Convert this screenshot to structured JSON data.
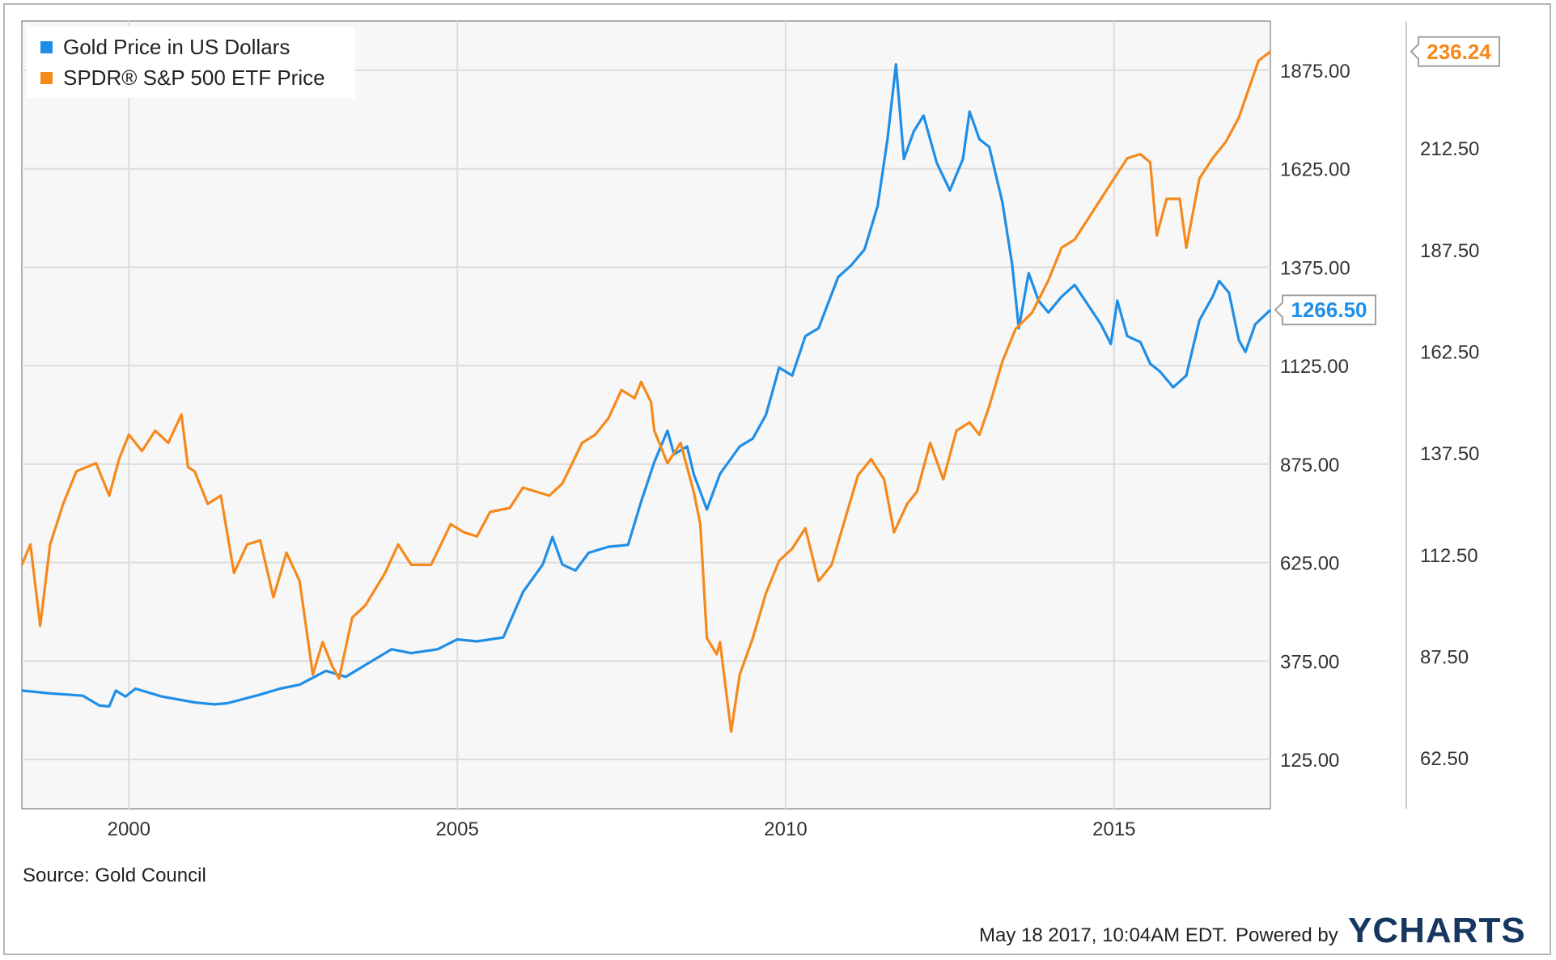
{
  "chart_data": {
    "type": "line",
    "x_ticks": [
      "2000",
      "2005",
      "2010",
      "2015"
    ],
    "y_left": {
      "ticks": [
        "125.00",
        "375.00",
        "625.00",
        "875.00",
        "1125.00",
        "1375.00",
        "1625.00",
        "1875.00"
      ],
      "range": [
        0,
        2000
      ]
    },
    "y_right": {
      "ticks": [
        "62.50",
        "87.50",
        "112.50",
        "137.50",
        "162.50",
        "187.50",
        "212.50"
      ],
      "range": [
        50,
        243.75
      ]
    },
    "x_range": [
      1998.37,
      2017.38
    ],
    "grid": true,
    "legend_position": "top-left",
    "series": [
      {
        "name": "Gold Price in US Dollars",
        "color": "#1f8ee6",
        "axis": "left",
        "last_value": "1266.50",
        "points": [
          [
            1998.37,
            300
          ],
          [
            1998.8,
            293
          ],
          [
            1999.3,
            287
          ],
          [
            1999.55,
            262
          ],
          [
            1999.7,
            260
          ],
          [
            1999.8,
            300
          ],
          [
            1999.95,
            285
          ],
          [
            2000.1,
            305
          ],
          [
            2000.5,
            285
          ],
          [
            2001.0,
            270
          ],
          [
            2001.3,
            265
          ],
          [
            2001.5,
            268
          ],
          [
            2002.0,
            290
          ],
          [
            2002.3,
            305
          ],
          [
            2002.6,
            315
          ],
          [
            2003.0,
            350
          ],
          [
            2003.3,
            335
          ],
          [
            2003.7,
            375
          ],
          [
            2004.0,
            405
          ],
          [
            2004.3,
            395
          ],
          [
            2004.7,
            405
          ],
          [
            2005.0,
            430
          ],
          [
            2005.3,
            425
          ],
          [
            2005.7,
            435
          ],
          [
            2006.0,
            550
          ],
          [
            2006.3,
            620
          ],
          [
            2006.45,
            690
          ],
          [
            2006.6,
            620
          ],
          [
            2006.8,
            605
          ],
          [
            2007.0,
            650
          ],
          [
            2007.3,
            665
          ],
          [
            2007.6,
            670
          ],
          [
            2007.8,
            780
          ],
          [
            2008.0,
            880
          ],
          [
            2008.2,
            960
          ],
          [
            2008.3,
            900
          ],
          [
            2008.5,
            920
          ],
          [
            2008.6,
            850
          ],
          [
            2008.8,
            760
          ],
          [
            2009.0,
            850
          ],
          [
            2009.3,
            920
          ],
          [
            2009.5,
            940
          ],
          [
            2009.7,
            1000
          ],
          [
            2009.9,
            1120
          ],
          [
            2010.1,
            1100
          ],
          [
            2010.3,
            1200
          ],
          [
            2010.5,
            1220
          ],
          [
            2010.8,
            1350
          ],
          [
            2011.0,
            1380
          ],
          [
            2011.2,
            1420
          ],
          [
            2011.4,
            1530
          ],
          [
            2011.55,
            1700
          ],
          [
            2011.68,
            1890
          ],
          [
            2011.8,
            1650
          ],
          [
            2011.95,
            1720
          ],
          [
            2012.1,
            1760
          ],
          [
            2012.3,
            1640
          ],
          [
            2012.5,
            1570
          ],
          [
            2012.7,
            1650
          ],
          [
            2012.8,
            1770
          ],
          [
            2012.95,
            1700
          ],
          [
            2013.1,
            1680
          ],
          [
            2013.3,
            1540
          ],
          [
            2013.45,
            1380
          ],
          [
            2013.55,
            1220
          ],
          [
            2013.7,
            1360
          ],
          [
            2013.85,
            1290
          ],
          [
            2014.0,
            1260
          ],
          [
            2014.2,
            1300
          ],
          [
            2014.4,
            1330
          ],
          [
            2014.6,
            1280
          ],
          [
            2014.8,
            1230
          ],
          [
            2014.95,
            1180
          ],
          [
            2015.05,
            1290
          ],
          [
            2015.2,
            1200
          ],
          [
            2015.4,
            1185
          ],
          [
            2015.55,
            1130
          ],
          [
            2015.7,
            1110
          ],
          [
            2015.9,
            1070
          ],
          [
            2016.1,
            1100
          ],
          [
            2016.3,
            1240
          ],
          [
            2016.5,
            1300
          ],
          [
            2016.6,
            1340
          ],
          [
            2016.75,
            1310
          ],
          [
            2016.9,
            1190
          ],
          [
            2017.0,
            1160
          ],
          [
            2017.15,
            1230
          ],
          [
            2017.38,
            1266.5
          ]
        ]
      },
      {
        "name": "SPDR® S&P 500 ETF Price",
        "color": "#f5891c",
        "axis": "right",
        "last_value": "236.24",
        "points": [
          [
            1998.37,
            110
          ],
          [
            1998.5,
            115
          ],
          [
            1998.65,
            95
          ],
          [
            1998.8,
            115
          ],
          [
            1999.0,
            125
          ],
          [
            1999.2,
            133
          ],
          [
            1999.5,
            135
          ],
          [
            1999.7,
            127
          ],
          [
            1999.85,
            136
          ],
          [
            2000.0,
            142
          ],
          [
            2000.2,
            138
          ],
          [
            2000.4,
            143
          ],
          [
            2000.6,
            140
          ],
          [
            2000.8,
            147
          ],
          [
            2000.9,
            134
          ],
          [
            2001.0,
            133
          ],
          [
            2001.2,
            125
          ],
          [
            2001.4,
            127
          ],
          [
            2001.6,
            108
          ],
          [
            2001.8,
            115
          ],
          [
            2002.0,
            116
          ],
          [
            2002.2,
            102
          ],
          [
            2002.4,
            113
          ],
          [
            2002.6,
            106
          ],
          [
            2002.8,
            83
          ],
          [
            2002.95,
            91
          ],
          [
            2003.1,
            85
          ],
          [
            2003.2,
            82
          ],
          [
            2003.4,
            97
          ],
          [
            2003.6,
            100
          ],
          [
            2003.9,
            108
          ],
          [
            2004.1,
            115
          ],
          [
            2004.3,
            110
          ],
          [
            2004.6,
            110
          ],
          [
            2004.9,
            120
          ],
          [
            2005.1,
            118
          ],
          [
            2005.3,
            117
          ],
          [
            2005.5,
            123
          ],
          [
            2005.8,
            124
          ],
          [
            2006.0,
            129
          ],
          [
            2006.2,
            128
          ],
          [
            2006.4,
            127
          ],
          [
            2006.6,
            130
          ],
          [
            2006.9,
            140
          ],
          [
            2007.1,
            142
          ],
          [
            2007.3,
            146
          ],
          [
            2007.5,
            153
          ],
          [
            2007.7,
            151
          ],
          [
            2007.8,
            155
          ],
          [
            2007.95,
            150
          ],
          [
            2008.0,
            143
          ],
          [
            2008.2,
            135
          ],
          [
            2008.4,
            140
          ],
          [
            2008.6,
            128
          ],
          [
            2008.7,
            120
          ],
          [
            2008.8,
            92
          ],
          [
            2008.95,
            88
          ],
          [
            2009.0,
            91
          ],
          [
            2009.17,
            69
          ],
          [
            2009.3,
            83
          ],
          [
            2009.5,
            92
          ],
          [
            2009.7,
            103
          ],
          [
            2009.9,
            111
          ],
          [
            2010.1,
            114
          ],
          [
            2010.3,
            119
          ],
          [
            2010.5,
            106
          ],
          [
            2010.7,
            110
          ],
          [
            2010.9,
            121
          ],
          [
            2011.1,
            132
          ],
          [
            2011.3,
            136
          ],
          [
            2011.5,
            131
          ],
          [
            2011.65,
            118
          ],
          [
            2011.85,
            125
          ],
          [
            2012.0,
            128
          ],
          [
            2012.2,
            140
          ],
          [
            2012.4,
            131
          ],
          [
            2012.6,
            143
          ],
          [
            2012.8,
            145
          ],
          [
            2012.95,
            142
          ],
          [
            2013.1,
            149
          ],
          [
            2013.3,
            160
          ],
          [
            2013.5,
            168
          ],
          [
            2013.75,
            172
          ],
          [
            2014.0,
            180
          ],
          [
            2014.2,
            188
          ],
          [
            2014.4,
            190
          ],
          [
            2014.6,
            195
          ],
          [
            2014.8,
            200
          ],
          [
            2015.0,
            205
          ],
          [
            2015.2,
            210
          ],
          [
            2015.4,
            211
          ],
          [
            2015.55,
            209
          ],
          [
            2015.65,
            191
          ],
          [
            2015.8,
            200
          ],
          [
            2016.0,
            200
          ],
          [
            2016.1,
            188
          ],
          [
            2016.3,
            205
          ],
          [
            2016.5,
            210
          ],
          [
            2016.7,
            214
          ],
          [
            2016.9,
            220
          ],
          [
            2017.05,
            227
          ],
          [
            2017.2,
            234
          ],
          [
            2017.38,
            236.24
          ]
        ]
      }
    ]
  },
  "source_label": "Source: Gold Council",
  "timestamp": "May 18 2017, 10:04AM EDT.",
  "powered_by": "Powered by",
  "brand": "YCHARTS"
}
